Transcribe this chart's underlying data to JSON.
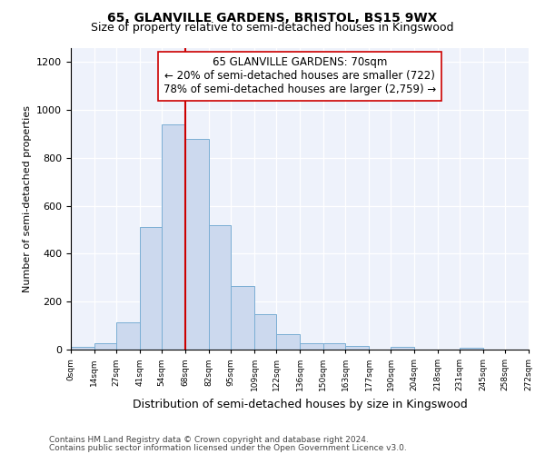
{
  "title1": "65, GLANVILLE GARDENS, BRISTOL, BS15 9WX",
  "title2": "Size of property relative to semi-detached houses in Kingswood",
  "xlabel": "Distribution of semi-detached houses by size in Kingswood",
  "ylabel": "Number of semi-detached properties",
  "footer1": "Contains HM Land Registry data © Crown copyright and database right 2024.",
  "footer2": "Contains public sector information licensed under the Open Government Licence v3.0.",
  "annotation_line1": "65 GLANVILLE GARDENS: 70sqm",
  "annotation_line2": "← 20% of semi-detached houses are smaller (722)",
  "annotation_line3": "78% of semi-detached houses are larger (2,759) →",
  "bar_color": "#ccd9ee",
  "bar_edge_color": "#7aaed4",
  "vline_color": "#cc0000",
  "vline_x": 68,
  "bin_edges": [
    0,
    14,
    27,
    41,
    54,
    68,
    82,
    95,
    109,
    122,
    136,
    150,
    163,
    177,
    190,
    204,
    218,
    231,
    245,
    258,
    272
  ],
  "bin_labels": [
    "0sqm",
    "14sqm",
    "27sqm",
    "41sqm",
    "54sqm",
    "68sqm",
    "82sqm",
    "95sqm",
    "109sqm",
    "122sqm",
    "136sqm",
    "150sqm",
    "163sqm",
    "177sqm",
    "190sqm",
    "204sqm",
    "218sqm",
    "231sqm",
    "245sqm",
    "258sqm",
    "272sqm"
  ],
  "bar_heights": [
    10,
    28,
    112,
    510,
    940,
    880,
    518,
    265,
    148,
    65,
    27,
    27,
    15,
    0,
    13,
    0,
    0,
    8,
    0,
    0
  ],
  "ylim": [
    0,
    1260
  ],
  "yticks": [
    0,
    200,
    400,
    600,
    800,
    1000,
    1200
  ],
  "background_color": "#eef2fb",
  "title1_fontsize": 10,
  "title2_fontsize": 9,
  "ann_fontsize": 8.5,
  "xlabel_fontsize": 9,
  "ylabel_fontsize": 8,
  "footer_fontsize": 6.5
}
